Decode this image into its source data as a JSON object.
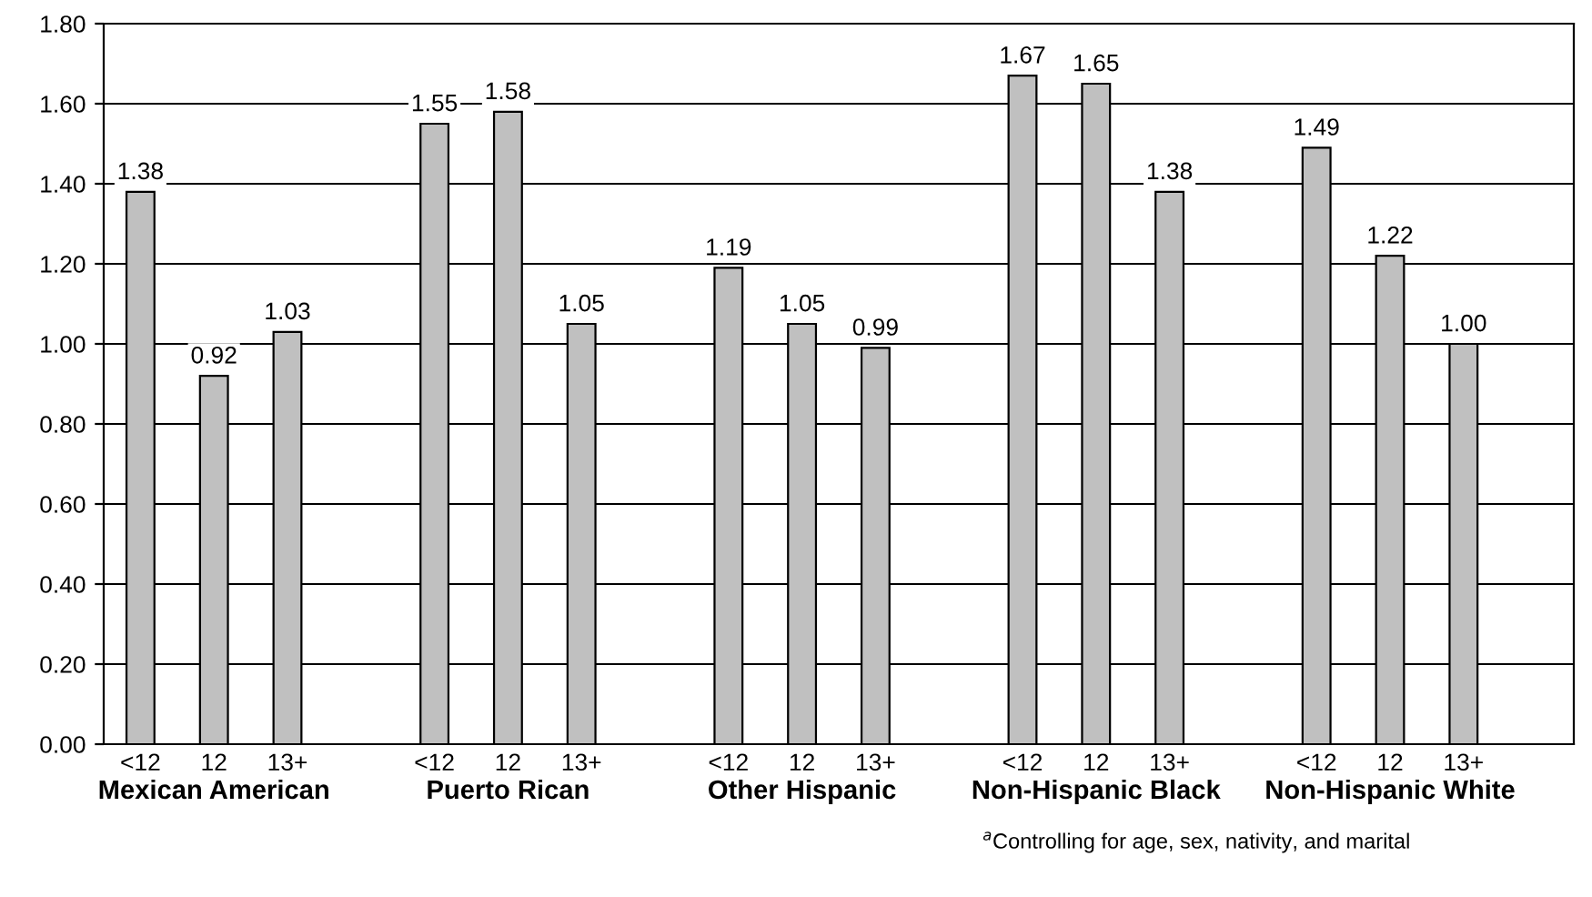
{
  "chart_data": {
    "type": "bar",
    "categories": [
      "<12",
      "12",
      "13+",
      null,
      "<12",
      "12",
      "13+",
      null,
      "<12",
      "12",
      "13+",
      null,
      "<12",
      "12",
      "13+",
      null,
      "<12",
      "12",
      "13+",
      null
    ],
    "values": [
      1.38,
      0.92,
      1.03,
      null,
      1.55,
      1.58,
      1.05,
      null,
      1.19,
      1.05,
      0.99,
      null,
      1.67,
      1.65,
      1.38,
      null,
      1.49,
      1.22,
      1.0,
      null
    ],
    "value_labels": [
      "1.38",
      "0.92",
      "1.03",
      null,
      "1.55",
      "1.58",
      "1.05",
      null,
      "1.19",
      "1.05",
      "0.99",
      null,
      "1.67",
      "1.65",
      "1.38",
      null,
      "1.49",
      "1.22",
      "1.00",
      null
    ],
    "color": "#c0c0c0",
    "ylim": [
      0,
      1.8
    ],
    "yticks": [
      {
        "value": 0,
        "label": "0.00"
      },
      {
        "value": 0.2,
        "label": "0.20"
      },
      {
        "value": 0.4,
        "label": "0.40"
      },
      {
        "value": 0.6,
        "label": "0.60"
      },
      {
        "value": 0.8,
        "label": "0.80"
      },
      {
        "value": 1.0,
        "label": "1.00"
      },
      {
        "value": 1.2,
        "label": "1.20"
      },
      {
        "value": 1.4,
        "label": "1.40"
      },
      {
        "value": 1.6,
        "label": "1.60"
      },
      {
        "value": 1.8,
        "label": "1.80"
      }
    ],
    "grid": "y",
    "annotations": [
      "Mexican American",
      "Puerto Rican",
      "Other Hispanic",
      "Non-Hispanic Black",
      "Non-Hispanic White",
      "$^{a}$Controlling for age, sex, nativity, and marital"
    ]
  }
}
